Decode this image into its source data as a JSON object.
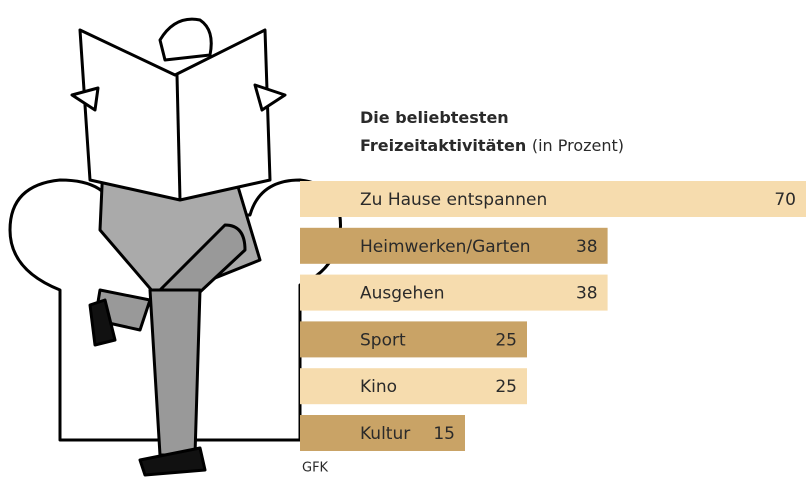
{
  "chart_data": {
    "type": "bar",
    "orientation": "horizontal",
    "title": "Die beliebtesten Freizeitaktivitäten",
    "subtitle": "(in Prozent)",
    "source": "GFK",
    "categories": [
      "Zu Hause entspannen",
      "Heimwerken/Garten",
      "Ausgehen",
      "Sport",
      "Kino",
      "Kultur"
    ],
    "values": [
      70,
      38,
      38,
      25,
      25,
      15
    ],
    "colors": [
      "#f6dcae",
      "#c9a366",
      "#f6dcae",
      "#c9a366",
      "#f6dcae",
      "#c9a366"
    ],
    "xlim": [
      0,
      70
    ]
  }
}
